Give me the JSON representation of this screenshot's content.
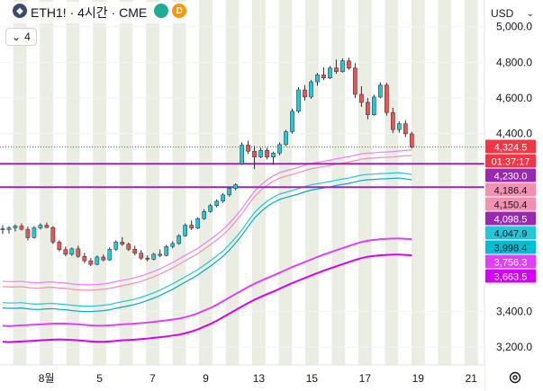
{
  "header": {
    "symbol_icon": "ethereum-icon",
    "title": "ETH1! · 4시간 · CME",
    "status_green": "market-open-dot",
    "delay_badge": "D",
    "indicator_toggle_icon": "chevron-down-icon",
    "indicator_count": "4"
  },
  "currency": {
    "label": "USD",
    "icon": "chevron-down-icon"
  },
  "chart_data": {
    "type": "candlestick",
    "ylim": [
      3100,
      5150
    ],
    "y_ticks": [
      "5,000.0",
      "4,800.0",
      "4,600.0",
      "4,400.0",
      "3,400.0",
      "3,200.0"
    ],
    "y_tick_values": [
      5000,
      4800,
      4600,
      4400,
      3400,
      3200
    ],
    "x_ticks": [
      "8월",
      "5",
      "7",
      "9",
      "13",
      "15",
      "17",
      "19",
      "21"
    ],
    "x_tick_positions": [
      2,
      6,
      10,
      14,
      18,
      22,
      26,
      30,
      34
    ],
    "x_range": [
      -1.5,
      35
    ],
    "last_price": 4324.5,
    "horizontal_lines": [
      {
        "name": "upper-purple-line",
        "value": 4230.0,
        "color": "#9c27b0"
      },
      {
        "name": "lower-purple-line",
        "value": 4098.5,
        "color": "#9c27b0"
      }
    ],
    "candles": [
      {
        "o": 3865,
        "h": 3885,
        "l": 3835,
        "c": 3860
      },
      {
        "o": 3860,
        "h": 3880,
        "l": 3838,
        "c": 3870
      },
      {
        "o": 3870,
        "h": 3890,
        "l": 3850,
        "c": 3880
      },
      {
        "o": 3880,
        "h": 3895,
        "l": 3855,
        "c": 3862
      },
      {
        "o": 3862,
        "h": 3878,
        "l": 3800,
        "c": 3815
      },
      {
        "o": 3815,
        "h": 3880,
        "l": 3810,
        "c": 3870
      },
      {
        "o": 3870,
        "h": 3895,
        "l": 3860,
        "c": 3885
      },
      {
        "o": 3885,
        "h": 3900,
        "l": 3868,
        "c": 3872
      },
      {
        "o": 3872,
        "h": 3880,
        "l": 3780,
        "c": 3790
      },
      {
        "o": 3790,
        "h": 3800,
        "l": 3738,
        "c": 3748
      },
      {
        "o": 3748,
        "h": 3765,
        "l": 3710,
        "c": 3722
      },
      {
        "o": 3722,
        "h": 3760,
        "l": 3712,
        "c": 3752
      },
      {
        "o": 3752,
        "h": 3770,
        "l": 3702,
        "c": 3710
      },
      {
        "o": 3710,
        "h": 3730,
        "l": 3672,
        "c": 3685
      },
      {
        "o": 3685,
        "h": 3700,
        "l": 3655,
        "c": 3665
      },
      {
        "o": 3665,
        "h": 3715,
        "l": 3660,
        "c": 3706
      },
      {
        "o": 3706,
        "h": 3720,
        "l": 3682,
        "c": 3690
      },
      {
        "o": 3690,
        "h": 3760,
        "l": 3685,
        "c": 3750
      },
      {
        "o": 3750,
        "h": 3800,
        "l": 3740,
        "c": 3790
      },
      {
        "o": 3790,
        "h": 3818,
        "l": 3768,
        "c": 3778
      },
      {
        "o": 3778,
        "h": 3788,
        "l": 3740,
        "c": 3750
      },
      {
        "o": 3750,
        "h": 3770,
        "l": 3715,
        "c": 3728
      },
      {
        "o": 3728,
        "h": 3745,
        "l": 3690,
        "c": 3700
      },
      {
        "o": 3700,
        "h": 3715,
        "l": 3682,
        "c": 3694
      },
      {
        "o": 3694,
        "h": 3730,
        "l": 3688,
        "c": 3722
      },
      {
        "o": 3722,
        "h": 3748,
        "l": 3705,
        "c": 3715
      },
      {
        "o": 3715,
        "h": 3775,
        "l": 3710,
        "c": 3765
      },
      {
        "o": 3765,
        "h": 3795,
        "l": 3755,
        "c": 3782
      },
      {
        "o": 3782,
        "h": 3835,
        "l": 3775,
        "c": 3825
      },
      {
        "o": 3825,
        "h": 3895,
        "l": 3820,
        "c": 3885
      },
      {
        "o": 3885,
        "h": 3912,
        "l": 3858,
        "c": 3868
      },
      {
        "o": 3868,
        "h": 3930,
        "l": 3862,
        "c": 3922
      },
      {
        "o": 3922,
        "h": 3975,
        "l": 3915,
        "c": 3962
      },
      {
        "o": 3962,
        "h": 4005,
        "l": 3955,
        "c": 3995
      },
      {
        "o": 3995,
        "h": 4030,
        "l": 3985,
        "c": 4020
      },
      {
        "o": 4020,
        "h": 4065,
        "l": 4010,
        "c": 4055
      },
      {
        "o": 4055,
        "h": 4100,
        "l": 4045,
        "c": 4092
      },
      {
        "o": 4092,
        "h": 4120,
        "l": 4080,
        "c": 4112
      },
      {
        "o": 4230,
        "h": 4350,
        "l": 4225,
        "c": 4335
      },
      {
        "o": 4335,
        "h": 4360,
        "l": 4285,
        "c": 4300
      },
      {
        "o": 4300,
        "h": 4330,
        "l": 4200,
        "c": 4268
      },
      {
        "o": 4268,
        "h": 4320,
        "l": 4262,
        "c": 4305
      },
      {
        "o": 4305,
        "h": 4320,
        "l": 4255,
        "c": 4268
      },
      {
        "o": 4268,
        "h": 4298,
        "l": 4225,
        "c": 4290
      },
      {
        "o": 4290,
        "h": 4350,
        "l": 4278,
        "c": 4338
      },
      {
        "o": 4338,
        "h": 4420,
        "l": 4330,
        "c": 4410
      },
      {
        "o": 4410,
        "h": 4540,
        "l": 4400,
        "c": 4525
      },
      {
        "o": 4525,
        "h": 4660,
        "l": 4515,
        "c": 4645
      },
      {
        "o": 4645,
        "h": 4672,
        "l": 4585,
        "c": 4605
      },
      {
        "o": 4605,
        "h": 4700,
        "l": 4595,
        "c": 4690
      },
      {
        "o": 4690,
        "h": 4740,
        "l": 4668,
        "c": 4730
      },
      {
        "o": 4730,
        "h": 4772,
        "l": 4700,
        "c": 4712
      },
      {
        "o": 4712,
        "h": 4780,
        "l": 4705,
        "c": 4768
      },
      {
        "o": 4768,
        "h": 4815,
        "l": 4735,
        "c": 4748
      },
      {
        "o": 4748,
        "h": 4822,
        "l": 4742,
        "c": 4808
      },
      {
        "o": 4808,
        "h": 4825,
        "l": 4758,
        "c": 4768
      },
      {
        "o": 4768,
        "h": 4795,
        "l": 4600,
        "c": 4620
      },
      {
        "o": 4620,
        "h": 4665,
        "l": 4550,
        "c": 4575
      },
      {
        "o": 4575,
        "h": 4600,
        "l": 4480,
        "c": 4505
      },
      {
        "o": 4505,
        "h": 4618,
        "l": 4500,
        "c": 4605
      },
      {
        "o": 4605,
        "h": 4688,
        "l": 4598,
        "c": 4672
      },
      {
        "o": 4672,
        "h": 4685,
        "l": 4500,
        "c": 4518
      },
      {
        "o": 4518,
        "h": 4545,
        "l": 4402,
        "c": 4422
      },
      {
        "o": 4422,
        "h": 4468,
        "l": 4405,
        "c": 4455
      },
      {
        "o": 4455,
        "h": 4475,
        "l": 4380,
        "c": 4398
      },
      {
        "o": 4398,
        "h": 4410,
        "l": 4315,
        "c": 4324.5
      }
    ],
    "bands": [
      {
        "name": "outer-top-pink-band",
        "color": "#ea80fc",
        "values": [
          3570,
          3568,
          3568,
          3570,
          3565,
          3562,
          3562,
          3565,
          3566,
          3562,
          3560,
          3555,
          3552,
          3550,
          3550,
          3552,
          3555,
          3560,
          3568,
          3575,
          3582,
          3590,
          3600,
          3612,
          3625,
          3640,
          3658,
          3675,
          3695,
          3715,
          3735,
          3755,
          3780,
          3805,
          3832,
          3860,
          3895,
          3935,
          3978,
          4028,
          4075,
          4110,
          4140,
          4162,
          4180,
          4190,
          4200,
          4210,
          4222,
          4232,
          4238,
          4244,
          4250,
          4258,
          4264,
          4270,
          4278,
          4286,
          4290,
          4292,
          4295,
          4296,
          4298,
          4302,
          4305,
          4307
        ]
      },
      {
        "name": "inner-top-pink-band",
        "color": "#f48fb1",
        "values": [
          3540,
          3538,
          3538,
          3540,
          3535,
          3532,
          3532,
          3535,
          3536,
          3532,
          3530,
          3525,
          3522,
          3520,
          3520,
          3522,
          3525,
          3530,
          3538,
          3545,
          3552,
          3560,
          3570,
          3582,
          3595,
          3610,
          3628,
          3645,
          3665,
          3685,
          3705,
          3725,
          3750,
          3775,
          3802,
          3830,
          3865,
          3905,
          3948,
          3998,
          4045,
          4080,
          4110,
          4132,
          4150,
          4160,
          4170,
          4180,
          4192,
          4202,
          4208,
          4214,
          4220,
          4228,
          4234,
          4240,
          4248,
          4256,
          4260,
          4262,
          4265,
          4266,
          4268,
          4272,
          4275,
          4276
        ]
      },
      {
        "name": "upper-cyan-band",
        "color": "#26c6da",
        "values": [
          3450,
          3448,
          3448,
          3450,
          3445,
          3442,
          3442,
          3445,
          3446,
          3442,
          3440,
          3435,
          3432,
          3430,
          3430,
          3432,
          3435,
          3440,
          3448,
          3455,
          3462,
          3470,
          3480,
          3492,
          3505,
          3520,
          3538,
          3555,
          3575,
          3595,
          3615,
          3635,
          3660,
          3685,
          3712,
          3740,
          3775,
          3815,
          3858,
          3908,
          3955,
          3990,
          4020,
          4042,
          4060,
          4070,
          4080,
          4090,
          4102,
          4112,
          4118,
          4124,
          4130,
          4138,
          4144,
          4150,
          4158,
          4166,
          4170,
          4172,
          4175,
          4176,
          4178,
          4180,
          4175,
          4170
        ]
      },
      {
        "name": "lower-cyan-band",
        "color": "#00acc1",
        "values": [
          3420,
          3418,
          3418,
          3420,
          3415,
          3412,
          3412,
          3415,
          3416,
          3412,
          3410,
          3405,
          3402,
          3400,
          3400,
          3402,
          3405,
          3410,
          3418,
          3425,
          3432,
          3440,
          3450,
          3462,
          3475,
          3490,
          3508,
          3525,
          3545,
          3565,
          3585,
          3605,
          3630,
          3655,
          3682,
          3710,
          3745,
          3785,
          3828,
          3878,
          3925,
          3960,
          3990,
          4012,
          4030,
          4040,
          4050,
          4060,
          4072,
          4082,
          4088,
          4094,
          4100,
          4108,
          4114,
          4120,
          4128,
          4136,
          4140,
          4142,
          4145,
          4146,
          4148,
          4150,
          4145,
          4140
        ]
      },
      {
        "name": "upper-magenta-band",
        "color": "#e040fb",
        "values": [
          3320,
          3318,
          3320,
          3322,
          3324,
          3326,
          3328,
          3330,
          3332,
          3333,
          3332,
          3330,
          3328,
          3325,
          3322,
          3320,
          3320,
          3322,
          3325,
          3328,
          3330,
          3332,
          3335,
          3338,
          3342,
          3346,
          3350,
          3355,
          3360,
          3368,
          3378,
          3390,
          3405,
          3420,
          3438,
          3458,
          3478,
          3498,
          3518,
          3538,
          3556,
          3572,
          3588,
          3602,
          3618,
          3634,
          3650,
          3664,
          3678,
          3692,
          3706,
          3720,
          3732,
          3744,
          3756,
          3768,
          3780,
          3790,
          3798,
          3802,
          3806,
          3808,
          3810,
          3810,
          3808,
          3806
        ]
      },
      {
        "name": "lower-magenta-band",
        "color": "#d500f9",
        "values": [
          3230,
          3228,
          3230,
          3232,
          3234,
          3236,
          3238,
          3240,
          3242,
          3243,
          3242,
          3240,
          3238,
          3235,
          3232,
          3230,
          3230,
          3232,
          3235,
          3238,
          3240,
          3242,
          3245,
          3248,
          3252,
          3256,
          3260,
          3265,
          3270,
          3278,
          3288,
          3300,
          3315,
          3330,
          3348,
          3368,
          3388,
          3408,
          3428,
          3448,
          3466,
          3482,
          3498,
          3512,
          3528,
          3544,
          3560,
          3574,
          3588,
          3602,
          3616,
          3630,
          3642,
          3654,
          3666,
          3678,
          3690,
          3700,
          3708,
          3712,
          3716,
          3718,
          3720,
          3720,
          3718,
          3716
        ]
      }
    ],
    "price_labels": [
      {
        "name": "last-price-label",
        "text": "4,324.5",
        "value": 4324.5,
        "bg": "#f23645",
        "fg": "#ffffff"
      },
      {
        "name": "countdown-label",
        "text": "01:37:17",
        "value": 4270,
        "bg": "#f23645",
        "fg": "#ffffff"
      },
      {
        "name": "upper-line-label",
        "text": "4,230.0",
        "value": 4230.0,
        "bg": "#9c27b0",
        "fg": "#ffffff"
      },
      {
        "name": "pink-band-label",
        "text": "4,186.4",
        "value": 4186.4,
        "bg": "#f48fb1",
        "fg": "#131722"
      },
      {
        "name": "pink-band-label-2",
        "text": "4,150.4",
        "value": 4150.4,
        "bg": "#f48fb1",
        "fg": "#131722"
      },
      {
        "name": "lower-line-label",
        "text": "4,098.5",
        "value": 4098.5,
        "bg": "#9c27b0",
        "fg": "#ffffff"
      },
      {
        "name": "cyan-band-label",
        "text": "4,047.9",
        "value": 4047.9,
        "bg": "#26c6da",
        "fg": "#131722"
      },
      {
        "name": "cyan-band-label-2",
        "text": "3,998.4",
        "value": 3998.4,
        "bg": "#00bcd4",
        "fg": "#131722"
      },
      {
        "name": "magenta-band-label",
        "text": "3,756.3",
        "value": 3756.3,
        "bg": "#e040fb",
        "fg": "#ffffff"
      },
      {
        "name": "magenta-band-label-2",
        "text": "3,663.5",
        "value": 3663.5,
        "bg": "#d500f9",
        "fg": "#ffffff"
      }
    ],
    "colors": {
      "up": "#26c6da",
      "down": "#ef5350",
      "session_shade": "#e9ede2",
      "grid": "#f0f3fa"
    }
  }
}
